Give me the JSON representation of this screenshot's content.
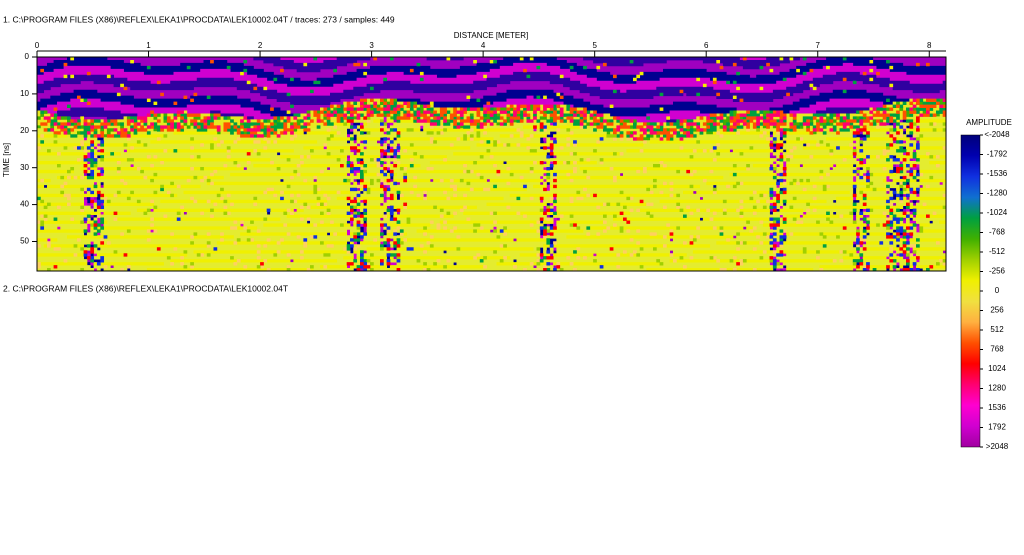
{
  "profile_1": {
    "header": "1. C:\\PROGRAM FILES (X86)\\REFLEX\\LEKA1\\PROCDATA\\LEK10002.04T  / traces: 273 / samples: 449",
    "x_axis": {
      "label": "DISTANCE [METER]",
      "lim": [
        0,
        8.15
      ],
      "ticks": [
        0,
        1,
        2,
        3,
        4,
        5,
        6,
        7,
        8
      ]
    },
    "y_axis": {
      "label": "TIME [ns]",
      "lim": [
        0,
        58
      ],
      "ticks": [
        0,
        10,
        20,
        30,
        40,
        50
      ]
    }
  },
  "profile_2": {
    "header": "2. C:\\PROGRAM FILES (X86)\\REFLEX\\LEKA1\\PROCDATA\\LEK10002.04T"
  },
  "colorbar": {
    "title": "AMPLITUDE",
    "ticks": [
      {
        "value": -2048,
        "label": "<-2048"
      },
      -1792,
      -1536,
      -1280,
      -1024,
      -768,
      -512,
      -256,
      0,
      256,
      512,
      768,
      1024,
      1280,
      1536,
      1792,
      {
        "value": 2048,
        "label": ">2048"
      }
    ],
    "colors": [
      "#00007a",
      "#0000b0",
      "#1030e0",
      "#1070d0",
      "#00a040",
      "#40b000",
      "#a0d000",
      "#f0f000",
      "#f0e040",
      "#ffb040",
      "#ff5000",
      "#ff0000",
      "#ff0070",
      "#ff00d0",
      "#d000d0",
      "#a000a0"
    ]
  }
}
